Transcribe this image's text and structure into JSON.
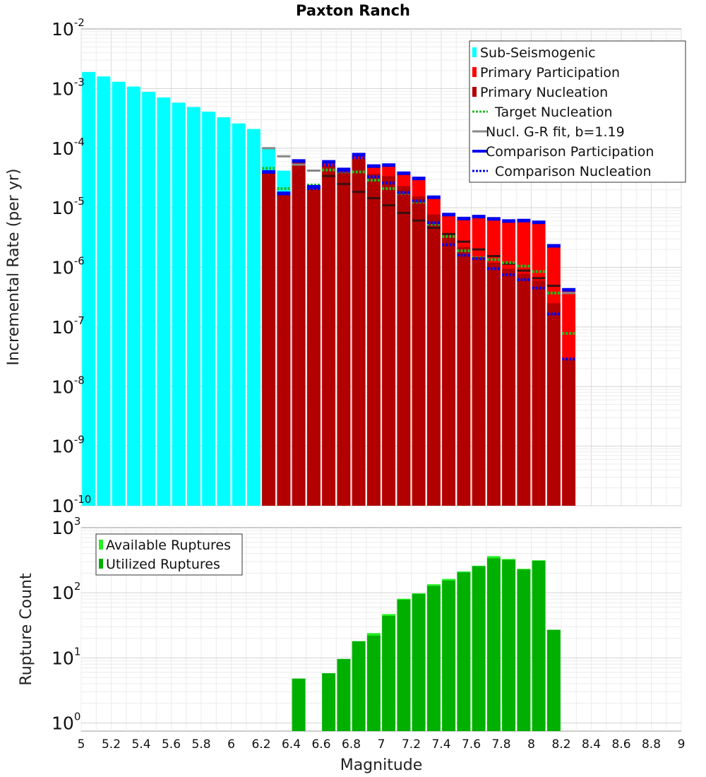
{
  "chart_data": [
    {
      "type": "bar",
      "title": "Paxton Ranch",
      "ylabel": "Incremental Rate (per yr)",
      "xlabel": "",
      "xlim": [
        5,
        9
      ],
      "ylim_exp": [
        -10,
        -2
      ],
      "yscale": "log",
      "grid": true,
      "legend_position": "top-right",
      "ytick_exponents": [
        "-10",
        "-9",
        "-8",
        "-7",
        "-6",
        "-5",
        "-4",
        "-3",
        "-2"
      ],
      "ytick_base": "10",
      "colors": {
        "sub_seismogenic": "#00ffff",
        "primary_participation": "#ff0000",
        "primary_nucleation": "#b20000",
        "target_nucleation": "#22bb22",
        "gr_fit": "#888888",
        "comparison_participation": "#0000ee",
        "comparison_nucleation": "#0000ee"
      },
      "legend": [
        {
          "label": "Sub-Seismogenic",
          "style": "box",
          "color": "#00ffff"
        },
        {
          "label": "Primary Participation",
          "style": "box",
          "color": "#ff0000"
        },
        {
          "label": "Primary Nucleation",
          "style": "box",
          "color": "#b20000"
        },
        {
          "label": "Target Nucleation",
          "style": "dotted",
          "color": "#22bb22"
        },
        {
          "label": "Nucl. G-R fit, b=1.19",
          "style": "line",
          "color": "#888888"
        },
        {
          "label": "Comparison Participation",
          "style": "thick",
          "color": "#0000ee"
        },
        {
          "label": "Comparison Nucleation",
          "style": "dotted",
          "color": "#0000ee"
        }
      ],
      "sub_seismogenic": {
        "x": [
          5.05,
          5.15,
          5.25,
          5.35,
          5.45,
          5.55,
          5.65,
          5.75,
          5.85,
          5.95,
          6.05,
          6.15,
          6.25,
          6.35
        ],
        "values": [
          0.0019,
          0.0016,
          0.0013,
          0.00108,
          0.00088,
          0.00071,
          0.00058,
          0.00049,
          0.00041,
          0.00033,
          0.00026,
          0.00021,
          0.0001,
          4.2e-05
        ]
      },
      "primary": {
        "x": [
          6.25,
          6.35,
          6.45,
          6.55,
          6.65,
          6.75,
          6.85,
          6.95,
          7.05,
          7.15,
          7.25,
          7.35,
          7.45,
          7.55,
          7.65,
          7.75,
          7.85,
          7.95,
          8.05,
          8.15,
          8.25
        ],
        "participation": [
          4e-05,
          1.8e-05,
          6.1e-05,
          2.3e-05,
          5.8e-05,
          4.3e-05,
          7.7e-05,
          5e-05,
          5.1e-05,
          3.7e-05,
          3e-05,
          1.45e-05,
          7.6e-06,
          6.5e-06,
          7e-06,
          6.4e-06,
          5.9e-06,
          6e-06,
          5.6e-06,
          2.3e-06,
          4.1e-07
        ],
        "nucleation": [
          4e-05,
          1.7e-05,
          6e-05,
          2.1e-05,
          5e-05,
          3.9e-05,
          6.5e-05,
          3.7e-05,
          3.4e-05,
          2.3e-05,
          1.55e-05,
          7.7e-06,
          3.8e-06,
          2.2e-06,
          1.5e-06,
          1.2e-06,
          9.5e-07,
          7.8e-07,
          6e-07,
          2.5e-07,
          2.9e-08
        ]
      },
      "target_nucleation": [
        4.6e-05,
        2.1e-05,
        6e-05,
        2.4e-05,
        4.3e-05,
        4e-05,
        4e-05,
        2.9e-05,
        2.1e-05,
        1.75e-05,
        1.25e-05,
        5.3e-06,
        3.3e-06,
        1.9e-06,
        1.45e-06,
        1.35e-06,
        1.2e-06,
        1.05e-06,
        8.5e-07,
        3.7e-07,
        7.8e-08
      ],
      "gr_fit": [
        0.0001,
        7.3e-05,
        5.3e-05,
        4.2e-05,
        3.2e-05,
        2.4e-05,
        1.85e-05,
        1.45e-05,
        1.1e-05,
        8.2e-06,
        6.1e-06,
        4.6e-06,
        3.6e-06,
        2.7e-06,
        2e-06,
        1.55e-06,
        1.15e-06,
        8.8e-07,
        6.6e-07,
        4.9e-07,
        3.7e-07
      ],
      "gr_fit_dark": [
        null,
        null,
        null,
        null,
        3.4e-05,
        2.5e-05,
        1.85e-05,
        1.45e-05,
        1.1e-05,
        8.2e-06,
        6.1e-06,
        4.6e-06,
        3.6e-06,
        2.7e-06,
        2e-06,
        1.55e-06,
        1.15e-06,
        8.8e-07,
        6.6e-07,
        4.9e-07,
        null
      ],
      "comparison_participation": [
        4e-05,
        1.75e-05,
        6.1e-05,
        2.25e-05,
        5.9e-05,
        4.4e-05,
        7.8e-05,
        5e-05,
        5.2e-05,
        3.8e-05,
        3.1e-05,
        1.5e-05,
        7.7e-06,
        6.6e-06,
        7.1e-06,
        6.5e-06,
        6e-06,
        6.1e-06,
        5.7e-06,
        2.3e-06,
        4.2e-07
      ],
      "comparison_nucleation": [
        null,
        1.7e-05,
        6e-05,
        2.1e-05,
        5.2e-05,
        4.1e-05,
        6.9e-05,
        3.3e-05,
        2.6e-05,
        1.8e-05,
        1.3e-05,
        5.6e-06,
        2.4e-06,
        1.6e-06,
        1.4e-06,
        9.5e-07,
        7.5e-07,
        6.2e-07,
        4.5e-07,
        1.65e-07,
        2.9e-08
      ]
    },
    {
      "type": "bar",
      "title": "",
      "ylabel": "Rupture Count",
      "xlabel": "Magnitude",
      "xlim": [
        5,
        9
      ],
      "ylim_exp": [
        0,
        3
      ],
      "ymin_value": 0.75,
      "yscale": "log",
      "grid": true,
      "legend_position": "top-left",
      "ytick_exponents": [
        "0",
        "1",
        "2",
        "3"
      ],
      "ytick_base": "10",
      "xticks": [
        "5",
        "5.2",
        "5.4",
        "5.6",
        "5.8",
        "6",
        "6.2",
        "6.4",
        "6.6",
        "6.8",
        "7",
        "7.2",
        "7.4",
        "7.6",
        "7.8",
        "8",
        "8.2",
        "8.4",
        "8.6",
        "8.8",
        "9"
      ],
      "colors": {
        "available": "#22ee22",
        "utilized": "#00b000"
      },
      "legend": [
        {
          "label": "Available Ruptures",
          "style": "box",
          "color": "#22ee22"
        },
        {
          "label": "Utilized Ruptures",
          "style": "box",
          "color": "#00b000"
        }
      ],
      "x": [
        6.45,
        6.55,
        6.65,
        6.75,
        6.85,
        6.95,
        7.05,
        7.15,
        7.25,
        7.35,
        7.45,
        7.55,
        7.65,
        7.75,
        7.85,
        7.95,
        8.05,
        8.15
      ],
      "available": [
        4.8,
        0,
        5.8,
        9.6,
        18,
        24,
        47,
        81,
        98,
        135,
        163,
        212,
        260,
        365,
        330,
        233,
        315,
        27
      ],
      "utilized": [
        4.8,
        0,
        5.8,
        9.6,
        18,
        22,
        44,
        78,
        96,
        127,
        153,
        205,
        255,
        338,
        320,
        228,
        310,
        27
      ]
    }
  ]
}
